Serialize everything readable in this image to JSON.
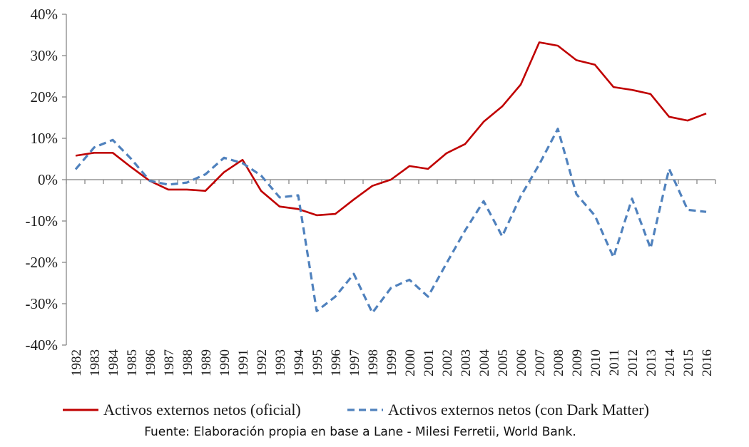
{
  "chart_data": {
    "type": "line",
    "x": [
      "1982",
      "1983",
      "1984",
      "1985",
      "1986",
      "1987",
      "1988",
      "1989",
      "1990",
      "1991",
      "1992",
      "1993",
      "1994",
      "1995",
      "1996",
      "1997",
      "1998",
      "1999",
      "2000",
      "2001",
      "2002",
      "2003",
      "2004",
      "2005",
      "2006",
      "2007",
      "2008",
      "2009",
      "2010",
      "2011",
      "2012",
      "2013",
      "2014",
      "2015",
      "2016"
    ],
    "series": [
      {
        "name": "Activos externos netos (oficial)",
        "color": "#c00000",
        "dash": "solid",
        "values": [
          5.8,
          6.5,
          6.5,
          3.0,
          -0.3,
          -2.4,
          -2.4,
          -2.7,
          1.8,
          4.8,
          -2.7,
          -6.5,
          -7.1,
          -8.6,
          -8.3,
          -4.8,
          -1.5,
          0.0,
          3.3,
          2.6,
          6.4,
          8.6,
          14.0,
          17.7,
          23.0,
          33.2,
          32.4,
          28.9,
          27.8,
          22.4,
          21.7,
          20.7,
          15.2,
          14.3,
          16.0
        ]
      },
      {
        "name": "Activos externos netos (con Dark Matter)",
        "color": "#4f81bd",
        "dash": "dashed",
        "values": [
          2.5,
          7.8,
          9.6,
          5.0,
          -0.3,
          -1.2,
          -0.7,
          1.3,
          5.3,
          4.0,
          1.0,
          -4.3,
          -3.8,
          -31.8,
          -28.3,
          -22.8,
          -32.2,
          -26.2,
          -24.2,
          -28.3,
          -20.2,
          -12.3,
          -5.2,
          -13.7,
          -4.0,
          3.7,
          12.3,
          -3.5,
          -8.7,
          -18.8,
          -4.6,
          -16.6,
          2.6,
          -7.3,
          -7.8
        ]
      }
    ],
    "ylim": [
      -40,
      40
    ],
    "y_ticks": [
      "-40%",
      "-30%",
      "-20%",
      "-10%",
      "0%",
      "10%",
      "20%",
      "30%",
      "40%"
    ],
    "y_tick_values": [
      -40,
      -30,
      -20,
      -10,
      0,
      10,
      20,
      30,
      40
    ],
    "grid": false,
    "legend_position": "bottom",
    "source": "Fuente: Elaboración propia en base a Lane - Milesi Ferretii, World Bank."
  }
}
